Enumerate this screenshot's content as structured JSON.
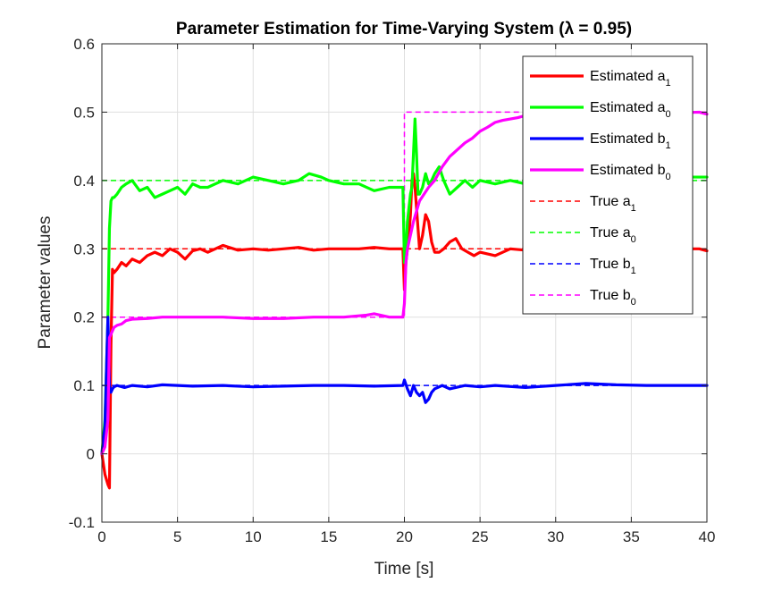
{
  "chart_data": {
    "type": "line",
    "title": "Parameter Estimation for Time-Varying System (λ = 0.95)",
    "xlabel": "Time [s]",
    "ylabel": "Parameter values",
    "xlim": [
      0,
      40
    ],
    "ylim": [
      -0.1,
      0.6
    ],
    "xticks": [
      0,
      5,
      10,
      15,
      20,
      25,
      30,
      35,
      40
    ],
    "xtick_labels": [
      "0",
      "5",
      "10",
      "15",
      "20",
      "25",
      "30",
      "35",
      "40"
    ],
    "yticks": [
      -0.1,
      0,
      0.1,
      0.2,
      0.3,
      0.4,
      0.5,
      0.6
    ],
    "ytick_labels": [
      "-0.1",
      "0",
      "0.1",
      "0.2",
      "0.3",
      "0.4",
      "0.5",
      "0.6"
    ],
    "grid": true,
    "legend_position": "top-right",
    "series": [
      {
        "name": "Estimated a1",
        "label_base": "Estimated a",
        "label_sub": "1",
        "color": "#ff0000",
        "style": "solid",
        "x": [
          0,
          0.2,
          0.4,
          0.5,
          0.6,
          0.7,
          0.8,
          1.0,
          1.3,
          1.6,
          2.0,
          2.5,
          3.0,
          3.5,
          4.0,
          4.5,
          5.0,
          5.5,
          6.0,
          6.5,
          7.0,
          7.5,
          8.0,
          9.0,
          10.0,
          11.0,
          12.0,
          13.0,
          14.0,
          15.0,
          16.0,
          17.0,
          18.0,
          19.0,
          19.9,
          20.0,
          20.1,
          20.2,
          20.3,
          20.4,
          20.5,
          20.6,
          20.7,
          20.8,
          20.9,
          21.0,
          21.2,
          21.4,
          21.6,
          21.8,
          22.0,
          22.3,
          22.6,
          23.0,
          23.4,
          23.8,
          24.2,
          24.6,
          25.0,
          26.0,
          27.0,
          28.0,
          29.0,
          30.0,
          32.0,
          34.0,
          36.0,
          38.0,
          39.5,
          40.0
        ],
        "y": [
          0.0,
          -0.03,
          -0.045,
          -0.05,
          0.16,
          0.27,
          0.265,
          0.27,
          0.28,
          0.275,
          0.285,
          0.28,
          0.29,
          0.295,
          0.29,
          0.3,
          0.295,
          0.285,
          0.297,
          0.3,
          0.295,
          0.3,
          0.305,
          0.298,
          0.3,
          0.298,
          0.3,
          0.302,
          0.298,
          0.3,
          0.3,
          0.3,
          0.302,
          0.3,
          0.3,
          0.24,
          0.28,
          0.3,
          0.32,
          0.35,
          0.4,
          0.41,
          0.39,
          0.36,
          0.33,
          0.3,
          0.32,
          0.35,
          0.34,
          0.31,
          0.295,
          0.295,
          0.3,
          0.31,
          0.315,
          0.3,
          0.295,
          0.29,
          0.295,
          0.29,
          0.3,
          0.298,
          0.3,
          0.3,
          0.298,
          0.3,
          0.298,
          0.3,
          0.3,
          0.297
        ]
      },
      {
        "name": "Estimated a0",
        "label_base": "Estimated a",
        "label_sub": "0",
        "color": "#00ff00",
        "style": "solid",
        "x": [
          0,
          0.2,
          0.4,
          0.5,
          0.6,
          0.7,
          0.8,
          1.0,
          1.3,
          1.6,
          2.0,
          2.5,
          3.0,
          3.5,
          4.0,
          4.5,
          5.0,
          5.5,
          6.0,
          6.5,
          7.0,
          7.5,
          8.0,
          9.0,
          10.0,
          11.0,
          12.0,
          13.0,
          13.7,
          14.5,
          15.0,
          16.0,
          17.0,
          18.0,
          19.0,
          19.9,
          20.0,
          20.1,
          20.2,
          20.3,
          20.4,
          20.5,
          20.6,
          20.7,
          20.8,
          20.9,
          21.0,
          21.2,
          21.4,
          21.6,
          21.8,
          22.0,
          22.3,
          22.6,
          23.0,
          23.5,
          24.0,
          24.5,
          25.0,
          26.0,
          27.0,
          28.0,
          29.0,
          30.0,
          31.0,
          32.0,
          34.0,
          36.0,
          38.0,
          39.5,
          40.0
        ],
        "y": [
          0.0,
          0.05,
          0.2,
          0.33,
          0.37,
          0.375,
          0.375,
          0.38,
          0.39,
          0.395,
          0.4,
          0.385,
          0.39,
          0.375,
          0.38,
          0.385,
          0.39,
          0.38,
          0.395,
          0.39,
          0.39,
          0.395,
          0.4,
          0.395,
          0.405,
          0.4,
          0.395,
          0.4,
          0.41,
          0.405,
          0.4,
          0.395,
          0.395,
          0.385,
          0.39,
          0.39,
          0.28,
          0.3,
          0.34,
          0.36,
          0.38,
          0.39,
          0.44,
          0.49,
          0.44,
          0.38,
          0.38,
          0.39,
          0.41,
          0.395,
          0.4,
          0.41,
          0.42,
          0.4,
          0.38,
          0.39,
          0.4,
          0.39,
          0.4,
          0.395,
          0.4,
          0.395,
          0.4,
          0.395,
          0.4,
          0.405,
          0.4,
          0.41,
          0.405,
          0.405,
          0.405
        ]
      },
      {
        "name": "Estimated b1",
        "label_base": "Estimated b",
        "label_sub": "1",
        "color": "#0000ff",
        "style": "solid",
        "x": [
          0,
          0.2,
          0.4,
          0.5,
          0.6,
          0.7,
          0.8,
          1.0,
          1.5,
          2.0,
          3.0,
          4.0,
          5.0,
          6.0,
          8.0,
          10.0,
          12.0,
          14.0,
          16.0,
          18.0,
          19.9,
          20.0,
          20.2,
          20.4,
          20.6,
          20.8,
          21.0,
          21.2,
          21.4,
          21.6,
          21.8,
          22.0,
          22.5,
          23.0,
          24.0,
          25.0,
          26.0,
          28.0,
          30.0,
          32.0,
          34.0,
          36.0,
          38.0,
          40.0
        ],
        "y": [
          0.0,
          0.04,
          0.2,
          0.1,
          0.09,
          0.095,
          0.098,
          0.1,
          0.097,
          0.1,
          0.098,
          0.101,
          0.1,
          0.099,
          0.1,
          0.098,
          0.099,
          0.1,
          0.1,
          0.099,
          0.1,
          0.108,
          0.095,
          0.085,
          0.1,
          0.09,
          0.085,
          0.09,
          0.075,
          0.08,
          0.09,
          0.095,
          0.1,
          0.095,
          0.1,
          0.098,
          0.1,
          0.097,
          0.1,
          0.103,
          0.101,
          0.1,
          0.1,
          0.1
        ]
      },
      {
        "name": "Estimated b0",
        "label_base": "Estimated b",
        "label_sub": "0",
        "color": "#ff00ff",
        "style": "solid",
        "x": [
          0,
          0.2,
          0.4,
          0.5,
          0.6,
          0.7,
          0.8,
          1.0,
          1.3,
          1.6,
          2.0,
          3.0,
          4.0,
          5.0,
          6.0,
          8.0,
          10.0,
          12.0,
          14.0,
          16.0,
          17.5,
          18.0,
          19.0,
          19.9,
          20.0,
          20.1,
          20.2,
          20.4,
          20.6,
          20.8,
          21.0,
          21.3,
          21.6,
          22.0,
          22.5,
          23.0,
          23.5,
          24.0,
          24.5,
          25.0,
          25.5,
          26.0,
          26.5,
          27.0,
          27.5,
          28.0,
          29.0,
          30.0,
          32.0,
          34.0,
          36.0,
          38.0,
          39.5,
          40.0
        ],
        "y": [
          0.0,
          0.01,
          0.05,
          0.17,
          0.175,
          0.18,
          0.185,
          0.188,
          0.19,
          0.195,
          0.197,
          0.198,
          0.2,
          0.2,
          0.2,
          0.2,
          0.198,
          0.198,
          0.2,
          0.2,
          0.203,
          0.205,
          0.2,
          0.2,
          0.22,
          0.28,
          0.3,
          0.32,
          0.34,
          0.355,
          0.37,
          0.38,
          0.39,
          0.4,
          0.42,
          0.435,
          0.445,
          0.455,
          0.462,
          0.472,
          0.478,
          0.485,
          0.488,
          0.49,
          0.492,
          0.495,
          0.495,
          0.495,
          0.496,
          0.498,
          0.497,
          0.499,
          0.5,
          0.497
        ]
      },
      {
        "name": "True a1",
        "label_base": "True a",
        "label_sub": "1",
        "color": "#ff0000",
        "style": "dashed",
        "x": [
          0,
          20,
          20,
          40
        ],
        "y": [
          0.3,
          0.3,
          0.3,
          0.3
        ]
      },
      {
        "name": "True a0",
        "label_base": "True a",
        "label_sub": "0",
        "color": "#00ff00",
        "style": "dashed",
        "x": [
          0,
          20,
          20,
          40
        ],
        "y": [
          0.4,
          0.4,
          0.4,
          0.4
        ]
      },
      {
        "name": "True b1",
        "label_base": "True b",
        "label_sub": "1",
        "color": "#0000ff",
        "style": "dashed",
        "x": [
          0,
          20,
          20,
          40
        ],
        "y": [
          0.1,
          0.1,
          0.1,
          0.1
        ]
      },
      {
        "name": "True b0",
        "label_base": "True b",
        "label_sub": "0",
        "color": "#ff00ff",
        "style": "dashed",
        "x": [
          0,
          20,
          20,
          40
        ],
        "y": [
          0.2,
          0.2,
          0.5,
          0.5
        ]
      }
    ]
  }
}
